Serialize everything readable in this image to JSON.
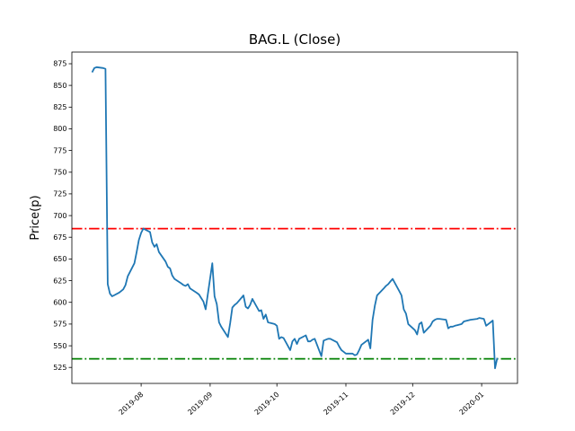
{
  "chart_data": {
    "type": "line",
    "title": "BAG.L (Close)",
    "ylabel": "Price(p)",
    "xlabel": "",
    "grid": false,
    "legend": null,
    "ylim": [
      506.6,
      888.4
    ],
    "yticks": [
      525,
      550,
      575,
      600,
      625,
      650,
      675,
      700,
      725,
      750,
      775,
      800,
      825,
      850,
      875
    ],
    "xticks": [
      {
        "date": "2019-08-01",
        "label": "2019-08"
      },
      {
        "date": "2019-09-01",
        "label": "2019-09"
      },
      {
        "date": "2019-10-01",
        "label": "2019-10"
      },
      {
        "date": "2019-11-01",
        "label": "2019-11"
      },
      {
        "date": "2019-12-01",
        "label": "2019-12"
      },
      {
        "date": "2020-01-01",
        "label": "2020-01"
      }
    ],
    "x_margin_frac": 0.05,
    "hlines": [
      {
        "name": "upper-level-line",
        "value": 685,
        "color": "#ff0000",
        "linestyle": "dashdot"
      },
      {
        "name": "lower-level-line",
        "value": 535,
        "color": "#008000",
        "linestyle": "dashdot"
      }
    ],
    "series": [
      {
        "name": "Close",
        "color": "#1f77b4",
        "dates": [
          "2019-07-10",
          "2019-07-11",
          "2019-07-12",
          "2019-07-15",
          "2019-07-16",
          "2019-07-17",
          "2019-07-18",
          "2019-07-19",
          "2019-07-22",
          "2019-07-23",
          "2019-07-24",
          "2019-07-25",
          "2019-07-26",
          "2019-07-29",
          "2019-07-30",
          "2019-07-31",
          "2019-08-01",
          "2019-08-02",
          "2019-08-05",
          "2019-08-06",
          "2019-08-07",
          "2019-08-08",
          "2019-08-09",
          "2019-08-12",
          "2019-08-13",
          "2019-08-14",
          "2019-08-15",
          "2019-08-16",
          "2019-08-19",
          "2019-08-20",
          "2019-08-21",
          "2019-08-22",
          "2019-08-23",
          "2019-08-26",
          "2019-08-27",
          "2019-08-28",
          "2019-08-29",
          "2019-08-30",
          "2019-09-02",
          "2019-09-03",
          "2019-09-04",
          "2019-09-05",
          "2019-09-06",
          "2019-09-09",
          "2019-09-10",
          "2019-09-11",
          "2019-09-12",
          "2019-09-13",
          "2019-09-16",
          "2019-09-17",
          "2019-09-18",
          "2019-09-19",
          "2019-09-20",
          "2019-09-23",
          "2019-09-24",
          "2019-09-25",
          "2019-09-26",
          "2019-09-27",
          "2019-09-30",
          "2019-10-01",
          "2019-10-02",
          "2019-10-03",
          "2019-10-04",
          "2019-10-07",
          "2019-10-08",
          "2019-10-09",
          "2019-10-10",
          "2019-10-11",
          "2019-10-14",
          "2019-10-15",
          "2019-10-16",
          "2019-10-17",
          "2019-10-18",
          "2019-10-21",
          "2019-10-22",
          "2019-10-23",
          "2019-10-24",
          "2019-10-25",
          "2019-10-28",
          "2019-10-29",
          "2019-10-30",
          "2019-10-31",
          "2019-11-01",
          "2019-11-04",
          "2019-11-05",
          "2019-11-06",
          "2019-11-07",
          "2019-11-08",
          "2019-11-11",
          "2019-11-12",
          "2019-11-13",
          "2019-11-14",
          "2019-11-15",
          "2019-11-18",
          "2019-11-19",
          "2019-11-20",
          "2019-11-21",
          "2019-11-22",
          "2019-11-25",
          "2019-11-26",
          "2019-11-27",
          "2019-11-28",
          "2019-11-29",
          "2019-12-02",
          "2019-12-03",
          "2019-12-04",
          "2019-12-05",
          "2019-12-06",
          "2019-12-09",
          "2019-12-10",
          "2019-12-11",
          "2019-12-12",
          "2019-12-13",
          "2019-12-16",
          "2019-12-17",
          "2019-12-18",
          "2019-12-19",
          "2019-12-20",
          "2019-12-23",
          "2019-12-24",
          "2019-12-27",
          "2019-12-30",
          "2019-12-31",
          "2020-01-02",
          "2020-01-03",
          "2020-01-06",
          "2020-01-07",
          "2020-01-08"
        ],
        "values": [
          865,
          870,
          871,
          870,
          869,
          621,
          610,
          607,
          611,
          613,
          615,
          620,
          630,
          645,
          658,
          672,
          680,
          685,
          681,
          669,
          664,
          667,
          658,
          647,
          641,
          639,
          631,
          627,
          622,
          620,
          619,
          621,
          616,
          611,
          609,
          605,
          601,
          592,
          645,
          607,
          598,
          577,
          572,
          560,
          576,
          594,
          597,
          599,
          608,
          595,
          593,
          597,
          604,
          590,
          591,
          581,
          586,
          577,
          575,
          573,
          558,
          560,
          559,
          545,
          555,
          558,
          552,
          558,
          562,
          555,
          555,
          557,
          558,
          538,
          556,
          557,
          558,
          558,
          554,
          549,
          545,
          543,
          541,
          541,
          539,
          540,
          545,
          551,
          557,
          547,
          580,
          596,
          608,
          616,
          619,
          621,
          624,
          627,
          613,
          608,
          592,
          587,
          575,
          568,
          563,
          575,
          577,
          565,
          573,
          578,
          580,
          581,
          581,
          580,
          570,
          572,
          572,
          573,
          575,
          578,
          580,
          581,
          582,
          581,
          573,
          579,
          524,
          536
        ]
      }
    ]
  },
  "figure": {
    "background_color": "#ffffff",
    "axes_edge_color": "#000000",
    "tick_label_color": "#000000"
  }
}
